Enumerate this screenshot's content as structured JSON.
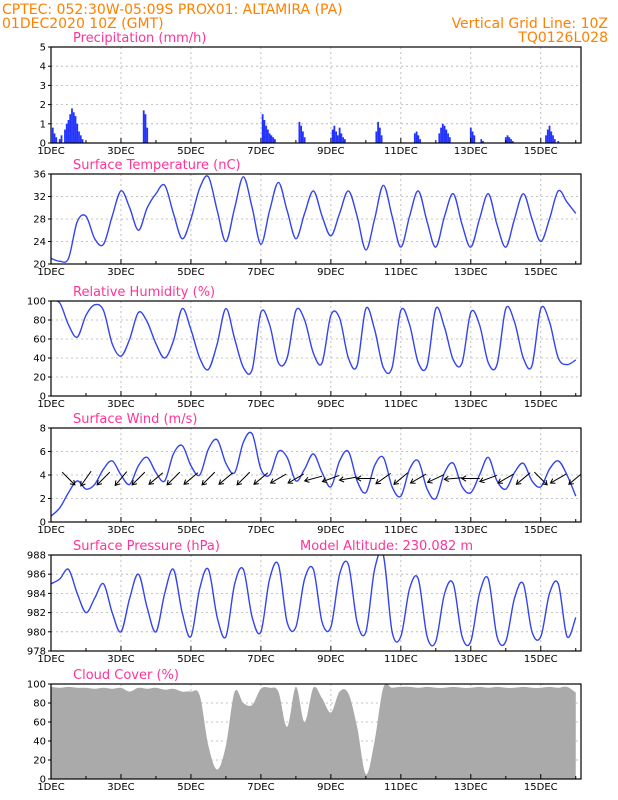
{
  "header": {
    "line1_left": "CPTEC:   052:30W-05:09S   PROX01: ALTAMIRA (PA)",
    "line2_left": "01DEC2020 10Z (GMT)",
    "line2_right": "Vertical Grid Line: 10Z",
    "line3_right": "TQ0126L028"
  },
  "colors": {
    "series": "#3344ee",
    "bars": "#2233ff",
    "cloud": "#aaaaaa",
    "title": "#ff3399",
    "header": "#ff8000"
  },
  "x_ticks": [
    "1DEC",
    "3DEC",
    "5DEC",
    "7DEC",
    "9DEC",
    "11DEC",
    "13DEC",
    "15DEC"
  ],
  "chart_data": [
    {
      "type": "bar",
      "title": "Precipitation (mm/h)",
      "ylim": [
        0,
        5
      ],
      "yticks": [
        0,
        1,
        2,
        3,
        4,
        5
      ],
      "x_unit": "days since 01DEC 10Z",
      "x": [
        0.05,
        0.1,
        0.15,
        0.25,
        0.3,
        0.4,
        0.45,
        0.5,
        0.55,
        0.6,
        0.65,
        0.7,
        0.75,
        0.8,
        0.85,
        0.9,
        2.65,
        2.7,
        2.75,
        6.05,
        6.1,
        6.15,
        6.2,
        6.25,
        6.3,
        6.35,
        6.4,
        7.1,
        7.15,
        7.2,
        7.25,
        8.05,
        8.1,
        8.15,
        8.2,
        8.25,
        8.3,
        8.35,
        8.4,
        9.3,
        9.35,
        9.4,
        9.45,
        10.4,
        10.45,
        10.5,
        10.55,
        11.1,
        11.15,
        11.2,
        11.25,
        11.3,
        11.35,
        11.4,
        12.0,
        12.05,
        12.1,
        12.3,
        12.35,
        13.0,
        13.05,
        13.1,
        13.15,
        13.2,
        14.15,
        14.2,
        14.25,
        14.3,
        14.35,
        14.4,
        14.5
      ],
      "values": [
        0.8,
        0.5,
        0.3,
        0.2,
        0.4,
        0.7,
        1.0,
        1.2,
        1.5,
        1.8,
        1.6,
        1.4,
        1.0,
        0.6,
        0.4,
        0.2,
        1.7,
        1.5,
        0.8,
        1.5,
        1.2,
        0.9,
        0.7,
        0.5,
        0.4,
        0.3,
        0.2,
        1.1,
        0.9,
        0.6,
        0.3,
        0.7,
        0.9,
        0.6,
        0.4,
        0.8,
        0.5,
        0.3,
        0.2,
        0.6,
        1.1,
        0.8,
        0.4,
        0.5,
        0.6,
        0.4,
        0.2,
        0.5,
        0.8,
        1.0,
        0.9,
        0.7,
        0.5,
        0.3,
        0.8,
        0.6,
        0.4,
        0.2,
        0.1,
        0.3,
        0.4,
        0.3,
        0.2,
        0.1,
        0.4,
        0.7,
        0.9,
        0.6,
        0.4,
        0.2,
        0.1
      ]
    },
    {
      "type": "line",
      "title": "Surface Temperature (nC)",
      "ylim": [
        20,
        36
      ],
      "yticks": [
        20,
        24,
        28,
        32,
        36
      ],
      "x_unit": "days since 01DEC 10Z",
      "x": [
        0,
        0.25,
        0.5,
        0.75,
        1.0,
        1.25,
        1.5,
        1.75,
        2.0,
        2.25,
        2.5,
        2.75,
        3.0,
        3.25,
        3.5,
        3.75,
        4.0,
        4.25,
        4.5,
        4.75,
        5.0,
        5.25,
        5.5,
        5.75,
        6.0,
        6.25,
        6.5,
        6.75,
        7.0,
        7.25,
        7.5,
        7.75,
        8.0,
        8.25,
        8.5,
        8.75,
        9.0,
        9.25,
        9.5,
        9.75,
        10.0,
        10.25,
        10.5,
        10.75,
        11.0,
        11.25,
        11.5,
        11.75,
        12.0,
        12.25,
        12.5,
        12.75,
        13.0,
        13.25,
        13.5,
        13.75,
        14.0,
        14.25,
        14.5,
        14.75,
        15.0
      ],
      "values": [
        21.0,
        20.5,
        21.0,
        27.5,
        28.5,
        24.5,
        23.5,
        28.5,
        33.0,
        30.0,
        26.0,
        30.0,
        32.5,
        34.0,
        29.0,
        24.5,
        28.0,
        33.5,
        35.5,
        29.5,
        24.0,
        30.0,
        35.5,
        30.0,
        23.5,
        29.5,
        34.5,
        29.5,
        24.5,
        29.0,
        33.0,
        28.5,
        25.0,
        29.0,
        33.0,
        28.5,
        22.5,
        28.0,
        34.0,
        28.5,
        23.0,
        28.5,
        33.0,
        27.5,
        23.0,
        28.5,
        32.5,
        27.0,
        23.0,
        28.0,
        32.5,
        27.0,
        23.0,
        28.0,
        32.5,
        28.0,
        24.0,
        28.0,
        33.0,
        31.0,
        29.0
      ]
    },
    {
      "type": "line",
      "title": "Relative Humidity (%)",
      "ylim": [
        0,
        100
      ],
      "yticks": [
        0,
        20,
        40,
        60,
        80,
        100
      ],
      "x_unit": "days since 01DEC 10Z",
      "x": [
        0,
        0.25,
        0.5,
        0.75,
        1.0,
        1.25,
        1.5,
        1.75,
        2.0,
        2.25,
        2.5,
        2.75,
        3.0,
        3.25,
        3.5,
        3.75,
        4.0,
        4.25,
        4.5,
        4.75,
        5.0,
        5.25,
        5.5,
        5.75,
        6.0,
        6.25,
        6.5,
        6.75,
        7.0,
        7.25,
        7.5,
        7.75,
        8.0,
        8.25,
        8.5,
        8.75,
        9.0,
        9.25,
        9.5,
        9.75,
        10.0,
        10.25,
        10.5,
        10.75,
        11.0,
        11.25,
        11.5,
        11.75,
        12.0,
        12.25,
        12.5,
        12.75,
        13.0,
        13.25,
        13.5,
        13.75,
        14.0,
        14.25,
        14.5,
        14.75,
        15.0
      ],
      "values": [
        100,
        98,
        75,
        62,
        85,
        96,
        90,
        55,
        42,
        60,
        88,
        78,
        55,
        40,
        58,
        92,
        70,
        40,
        28,
        55,
        92,
        60,
        30,
        28,
        88,
        75,
        35,
        40,
        90,
        80,
        45,
        35,
        85,
        82,
        40,
        32,
        92,
        70,
        30,
        30,
        90,
        75,
        35,
        32,
        92,
        72,
        38,
        35,
        88,
        75,
        35,
        33,
        92,
        78,
        40,
        32,
        92,
        78,
        40,
        33,
        38
      ]
    },
    {
      "type": "line",
      "title": "Surface Wind (m/s)",
      "ylim": [
        0,
        8
      ],
      "yticks": [
        0,
        2,
        4,
        6,
        8
      ],
      "x_unit": "days since 01DEC 10Z",
      "x": [
        0,
        0.25,
        0.5,
        0.75,
        1.0,
        1.25,
        1.5,
        1.75,
        2.0,
        2.25,
        2.5,
        2.75,
        3.0,
        3.25,
        3.5,
        3.75,
        4.0,
        4.25,
        4.5,
        4.75,
        5.0,
        5.25,
        5.5,
        5.75,
        6.0,
        6.25,
        6.5,
        6.75,
        7.0,
        7.25,
        7.5,
        7.75,
        8.0,
        8.25,
        8.5,
        8.75,
        9.0,
        9.25,
        9.5,
        9.75,
        10.0,
        10.25,
        10.5,
        10.75,
        11.0,
        11.25,
        11.5,
        11.75,
        12.0,
        12.25,
        12.5,
        12.75,
        13.0,
        13.25,
        13.5,
        13.75,
        14.0,
        14.25,
        14.5,
        14.75,
        15.0
      ],
      "values": [
        0.5,
        1.2,
        2.5,
        3.5,
        2.8,
        3.2,
        4.5,
        5.2,
        4.0,
        3.2,
        4.8,
        5.5,
        4.2,
        3.5,
        5.8,
        6.5,
        4.8,
        4.0,
        6.2,
        7.0,
        5.0,
        4.2,
        6.8,
        7.5,
        4.5,
        4.0,
        6.0,
        5.5,
        3.5,
        4.5,
        5.8,
        4.2,
        3.0,
        5.2,
        6.0,
        3.5,
        2.5,
        4.8,
        5.5,
        3.0,
        2.2,
        4.5,
        5.2,
        2.8,
        2.0,
        4.2,
        5.0,
        3.0,
        2.5,
        4.0,
        5.5,
        3.5,
        2.8,
        4.2,
        5.0,
        3.5,
        3.0,
        4.5,
        5.2,
        4.0,
        2.2
      ],
      "arrows": [
        {
          "x": 0.5,
          "dir": 135
        },
        {
          "x": 1.0,
          "dir": 215
        },
        {
          "x": 1.5,
          "dir": 225
        },
        {
          "x": 2.0,
          "dir": 220
        },
        {
          "x": 2.5,
          "dir": 225
        },
        {
          "x": 3.0,
          "dir": 230
        },
        {
          "x": 3.5,
          "dir": 225
        },
        {
          "x": 4.0,
          "dir": 230
        },
        {
          "x": 4.5,
          "dir": 225
        },
        {
          "x": 5.0,
          "dir": 230
        },
        {
          "x": 5.5,
          "dir": 225
        },
        {
          "x": 6.0,
          "dir": 230
        },
        {
          "x": 6.5,
          "dir": 240
        },
        {
          "x": 7.0,
          "dir": 240
        },
        {
          "x": 7.5,
          "dir": 255
        },
        {
          "x": 8.0,
          "dir": 250
        },
        {
          "x": 8.5,
          "dir": 260
        },
        {
          "x": 9.0,
          "dir": 270
        },
        {
          "x": 9.5,
          "dir": 235
        },
        {
          "x": 10.0,
          "dir": 230
        },
        {
          "x": 10.5,
          "dir": 240
        },
        {
          "x": 11.0,
          "dir": 245
        },
        {
          "x": 11.5,
          "dir": 265
        },
        {
          "x": 12.0,
          "dir": 270
        },
        {
          "x": 12.5,
          "dir": 250
        },
        {
          "x": 13.0,
          "dir": 240
        },
        {
          "x": 13.5,
          "dir": 230
        },
        {
          "x": 14.0,
          "dir": 135
        },
        {
          "x": 14.5,
          "dir": 240
        },
        {
          "x": 15.0,
          "dir": 230
        }
      ]
    },
    {
      "type": "line",
      "title": "Surface Pressure (hPa)",
      "annotation": "Model Altitude: 230.082 m",
      "ylim": [
        978,
        988
      ],
      "yticks": [
        978,
        980,
        982,
        984,
        986,
        988
      ],
      "x_unit": "days since 01DEC 10Z",
      "x": [
        0,
        0.25,
        0.5,
        0.75,
        1.0,
        1.25,
        1.5,
        1.75,
        2.0,
        2.25,
        2.5,
        2.75,
        3.0,
        3.25,
        3.5,
        3.75,
        4.0,
        4.25,
        4.5,
        4.75,
        5.0,
        5.25,
        5.5,
        5.75,
        6.0,
        6.25,
        6.5,
        6.75,
        7.0,
        7.25,
        7.5,
        7.75,
        8.0,
        8.25,
        8.5,
        8.75,
        9.0,
        9.25,
        9.5,
        9.75,
        10.0,
        10.25,
        10.5,
        10.75,
        11.0,
        11.25,
        11.5,
        11.75,
        12.0,
        12.25,
        12.5,
        12.75,
        13.0,
        13.25,
        13.5,
        13.75,
        14.0,
        14.25,
        14.5,
        14.75,
        15.0
      ],
      "values": [
        985.0,
        985.5,
        986.5,
        984.0,
        982.0,
        983.5,
        985.0,
        982.0,
        980.0,
        983.5,
        986.0,
        982.5,
        980.0,
        984.0,
        986.5,
        982.0,
        979.5,
        984.5,
        986.5,
        981.5,
        979.5,
        985.0,
        986.5,
        981.5,
        980.0,
        985.5,
        987.0,
        981.0,
        980.5,
        985.5,
        986.5,
        981.0,
        980.5,
        986.0,
        987.0,
        981.0,
        980.0,
        986.5,
        988.0,
        980.0,
        979.5,
        984.5,
        985.5,
        979.5,
        979.0,
        984.0,
        985.0,
        979.5,
        979.0,
        984.0,
        985.5,
        979.5,
        979.0,
        983.5,
        985.0,
        980.0,
        979.5,
        984.0,
        985.0,
        979.5,
        981.5
      ]
    },
    {
      "type": "area",
      "title": "Cloud Cover (%)",
      "ylim": [
        0,
        100
      ],
      "yticks": [
        0,
        20,
        40,
        60,
        80,
        100
      ],
      "x_unit": "days since 01DEC 10Z",
      "x": [
        0,
        0.25,
        0.5,
        0.75,
        1.0,
        1.25,
        1.5,
        1.75,
        2.0,
        2.25,
        2.5,
        2.75,
        3.0,
        3.25,
        3.5,
        3.75,
        4.0,
        4.25,
        4.5,
        4.75,
        5.0,
        5.25,
        5.5,
        5.75,
        6.0,
        6.25,
        6.5,
        6.75,
        7.0,
        7.25,
        7.5,
        7.75,
        8.0,
        8.25,
        8.5,
        8.75,
        9.0,
        9.25,
        9.5,
        9.75,
        10.0,
        10.25,
        10.5,
        10.75,
        11.0,
        11.25,
        11.5,
        11.75,
        12.0,
        12.25,
        12.5,
        12.75,
        13.0,
        13.25,
        13.5,
        13.75,
        14.0,
        14.25,
        14.5,
        14.75,
        15.0
      ],
      "values": [
        97,
        96,
        97,
        96,
        96,
        95,
        96,
        95,
        96,
        92,
        96,
        95,
        96,
        94,
        95,
        92,
        92,
        88,
        35,
        10,
        35,
        92,
        80,
        78,
        95,
        96,
        92,
        55,
        97,
        60,
        96,
        85,
        70,
        92,
        90,
        55,
        5,
        40,
        96,
        96,
        97,
        97,
        96,
        97,
        96,
        96,
        97,
        96,
        96,
        97,
        96,
        97,
        96,
        96,
        97,
        96,
        96,
        97,
        96,
        97,
        91
      ]
    }
  ]
}
